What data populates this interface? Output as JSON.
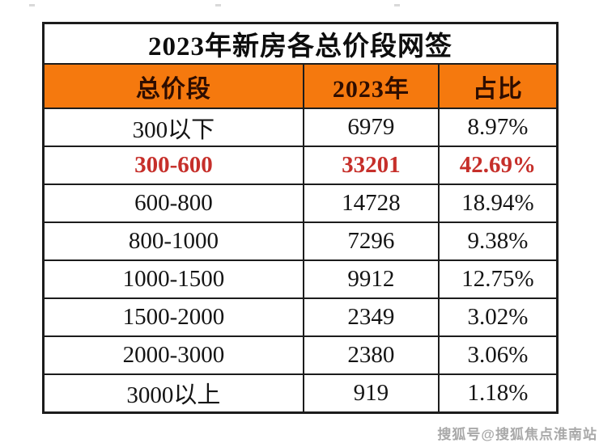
{
  "colors": {
    "header-bg": "#f5790e",
    "header-text": "#2e0d00",
    "highlight": "#c62f2a",
    "border": "#1c1c1c",
    "watermark": "#a9a9a9"
  },
  "chart_data": {
    "type": "table",
    "title": "2023年新房各总价段网签",
    "columns": [
      "总价段",
      "2023年",
      "占比"
    ],
    "rows": [
      [
        "300以下",
        "6979",
        "8.97%"
      ],
      [
        "300-600",
        "33201",
        "42.69%"
      ],
      [
        "600-800",
        "14728",
        "18.94%"
      ],
      [
        "800-1000",
        "7296",
        "9.38%"
      ],
      [
        "1000-1500",
        "9912",
        "12.75%"
      ],
      [
        "1500-2000",
        "2349",
        "3.02%"
      ],
      [
        "2000-3000",
        "2380",
        "3.06%"
      ],
      [
        "3000以上",
        "919",
        "1.18%"
      ]
    ],
    "highlighted_row": "300-600",
    "highlight_style": "red bold text",
    "header_background": "#f5790e",
    "layout": "3-column bordered grid, all cells centered, serif font"
  },
  "watermark": {
    "text": "搜狐号@搜狐焦点淮南站"
  }
}
